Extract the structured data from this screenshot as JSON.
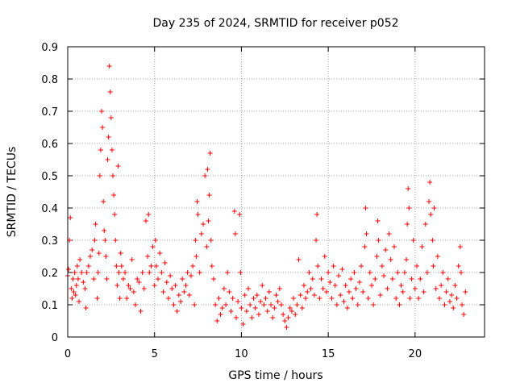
{
  "chart_data": {
    "type": "scatter",
    "title": "Day 235 of 2024, SRMTID for receiver p052",
    "xlabel": "GPS time / hours",
    "ylabel": "SRMTID / TECUs",
    "xlim": [
      0,
      24
    ],
    "ylim": [
      0,
      0.9
    ],
    "xticks": [
      0,
      5,
      10,
      15,
      20
    ],
    "xtick_labels": [
      "0",
      "5",
      "10",
      "15",
      "20"
    ],
    "yticks": [
      0,
      0.1,
      0.2,
      0.3,
      0.4,
      0.5,
      0.6,
      0.7,
      0.8,
      0.9
    ],
    "ytick_labels": [
      "0",
      "0.1",
      "0.2",
      "0.3",
      "0.4",
      "0.5",
      "0.6",
      "0.7",
      "0.8",
      "0.9"
    ],
    "grid": true,
    "marker": "+",
    "color": "#ff0000",
    "series": [
      {
        "name": "SRMTID",
        "points": [
          [
            0.0,
            0.19
          ],
          [
            0.05,
            0.21
          ],
          [
            0.1,
            0.3
          ],
          [
            0.15,
            0.37
          ],
          [
            0.2,
            0.15
          ],
          [
            0.25,
            0.12
          ],
          [
            0.3,
            0.18
          ],
          [
            0.35,
            0.14
          ],
          [
            0.4,
            0.2
          ],
          [
            0.45,
            0.13
          ],
          [
            0.5,
            0.16
          ],
          [
            0.55,
            0.22
          ],
          [
            0.6,
            0.18
          ],
          [
            0.65,
            0.11
          ],
          [
            0.7,
            0.24
          ],
          [
            0.8,
            0.2
          ],
          [
            0.9,
            0.17
          ],
          [
            1.0,
            0.15
          ],
          [
            1.05,
            0.09
          ],
          [
            1.1,
            0.2
          ],
          [
            1.2,
            0.22
          ],
          [
            1.3,
            0.25
          ],
          [
            1.4,
            0.27
          ],
          [
            1.5,
            0.18
          ],
          [
            1.55,
            0.3
          ],
          [
            1.6,
            0.35
          ],
          [
            1.7,
            0.12
          ],
          [
            1.75,
            0.2
          ],
          [
            1.8,
            0.26
          ],
          [
            1.85,
            0.5
          ],
          [
            1.9,
            0.58
          ],
          [
            1.95,
            0.7
          ],
          [
            2.0,
            0.65
          ],
          [
            2.05,
            0.42
          ],
          [
            2.1,
            0.33
          ],
          [
            2.15,
            0.3
          ],
          [
            2.2,
            0.25
          ],
          [
            2.25,
            0.18
          ],
          [
            2.3,
            0.55
          ],
          [
            2.35,
            0.62
          ],
          [
            2.4,
            0.84
          ],
          [
            2.45,
            0.76
          ],
          [
            2.5,
            0.68
          ],
          [
            2.55,
            0.58
          ],
          [
            2.6,
            0.5
          ],
          [
            2.65,
            0.44
          ],
          [
            2.7,
            0.38
          ],
          [
            2.75,
            0.3
          ],
          [
            2.8,
            0.22
          ],
          [
            2.85,
            0.16
          ],
          [
            2.9,
            0.53
          ],
          [
            2.95,
            0.2
          ],
          [
            3.0,
            0.12
          ],
          [
            3.05,
            0.26
          ],
          [
            3.1,
            0.22
          ],
          [
            3.2,
            0.18
          ],
          [
            3.3,
            0.2
          ],
          [
            3.4,
            0.12
          ],
          [
            3.5,
            0.16
          ],
          [
            3.6,
            0.15
          ],
          [
            3.7,
            0.24
          ],
          [
            3.8,
            0.14
          ],
          [
            3.9,
            0.1
          ],
          [
            4.0,
            0.18
          ],
          [
            4.1,
            0.17
          ],
          [
            4.2,
            0.08
          ],
          [
            4.3,
            0.2
          ],
          [
            4.4,
            0.15
          ],
          [
            4.5,
            0.36
          ],
          [
            4.6,
            0.25
          ],
          [
            4.65,
            0.38
          ],
          [
            4.7,
            0.2
          ],
          [
            4.8,
            0.22
          ],
          [
            4.9,
            0.28
          ],
          [
            5.0,
            0.16
          ],
          [
            5.05,
            0.3
          ],
          [
            5.1,
            0.22
          ],
          [
            5.2,
            0.18
          ],
          [
            5.3,
            0.26
          ],
          [
            5.4,
            0.2
          ],
          [
            5.5,
            0.14
          ],
          [
            5.6,
            0.23
          ],
          [
            5.7,
            0.17
          ],
          [
            5.8,
            0.12
          ],
          [
            5.9,
            0.19
          ],
          [
            6.0,
            0.15
          ],
          [
            6.1,
            0.1
          ],
          [
            6.2,
            0.16
          ],
          [
            6.3,
            0.08
          ],
          [
            6.4,
            0.13
          ],
          [
            6.5,
            0.11
          ],
          [
            6.6,
            0.18
          ],
          [
            6.7,
            0.14
          ],
          [
            6.8,
            0.16
          ],
          [
            6.9,
            0.2
          ],
          [
            7.0,
            0.13
          ],
          [
            7.1,
            0.19
          ],
          [
            7.2,
            0.22
          ],
          [
            7.3,
            0.1
          ],
          [
            7.35,
            0.3
          ],
          [
            7.4,
            0.25
          ],
          [
            7.45,
            0.42
          ],
          [
            7.5,
            0.38
          ],
          [
            7.6,
            0.2
          ],
          [
            7.7,
            0.32
          ],
          [
            7.8,
            0.35
          ],
          [
            7.9,
            0.5
          ],
          [
            8.0,
            0.28
          ],
          [
            8.05,
            0.52
          ],
          [
            8.1,
            0.36
          ],
          [
            8.15,
            0.44
          ],
          [
            8.2,
            0.57
          ],
          [
            8.25,
            0.3
          ],
          [
            8.3,
            0.22
          ],
          [
            8.4,
            0.18
          ],
          [
            8.5,
            0.1
          ],
          [
            8.6,
            0.05
          ],
          [
            8.7,
            0.12
          ],
          [
            8.8,
            0.07
          ],
          [
            8.9,
            0.09
          ],
          [
            9.0,
            0.15
          ],
          [
            9.1,
            0.1
          ],
          [
            9.2,
            0.2
          ],
          [
            9.3,
            0.14
          ],
          [
            9.4,
            0.08
          ],
          [
            9.5,
            0.12
          ],
          [
            9.6,
            0.39
          ],
          [
            9.65,
            0.32
          ],
          [
            9.7,
            0.06
          ],
          [
            9.8,
            0.11
          ],
          [
            9.9,
            0.38
          ],
          [
            9.95,
            0.2
          ],
          [
            10.0,
            0.09
          ],
          [
            10.1,
            0.04
          ],
          [
            10.2,
            0.13
          ],
          [
            10.3,
            0.08
          ],
          [
            10.4,
            0.15
          ],
          [
            10.5,
            0.1
          ],
          [
            10.6,
            0.06
          ],
          [
            10.7,
            0.12
          ],
          [
            10.8,
            0.09
          ],
          [
            10.9,
            0.13
          ],
          [
            11.0,
            0.07
          ],
          [
            11.1,
            0.11
          ],
          [
            11.2,
            0.16
          ],
          [
            11.3,
            0.1
          ],
          [
            11.4,
            0.12
          ],
          [
            11.5,
            0.08
          ],
          [
            11.6,
            0.14
          ],
          [
            11.7,
            0.1
          ],
          [
            11.8,
            0.06
          ],
          [
            11.9,
            0.09
          ],
          [
            12.0,
            0.13
          ],
          [
            12.1,
            0.11
          ],
          [
            12.2,
            0.15
          ],
          [
            12.3,
            0.1
          ],
          [
            12.4,
            0.07
          ],
          [
            12.5,
            0.05
          ],
          [
            12.6,
            0.03
          ],
          [
            12.7,
            0.06
          ],
          [
            12.8,
            0.09
          ],
          [
            12.9,
            0.08
          ],
          [
            13.0,
            0.12
          ],
          [
            13.1,
            0.07
          ],
          [
            13.2,
            0.1
          ],
          [
            13.3,
            0.24
          ],
          [
            13.4,
            0.13
          ],
          [
            13.5,
            0.09
          ],
          [
            13.6,
            0.16
          ],
          [
            13.7,
            0.12
          ],
          [
            13.8,
            0.14
          ],
          [
            13.9,
            0.2
          ],
          [
            14.0,
            0.15
          ],
          [
            14.1,
            0.18
          ],
          [
            14.2,
            0.13
          ],
          [
            14.3,
            0.3
          ],
          [
            14.35,
            0.38
          ],
          [
            14.4,
            0.22
          ],
          [
            14.5,
            0.12
          ],
          [
            14.6,
            0.18
          ],
          [
            14.7,
            0.15
          ],
          [
            14.8,
            0.25
          ],
          [
            14.9,
            0.14
          ],
          [
            15.0,
            0.2
          ],
          [
            15.1,
            0.17
          ],
          [
            15.2,
            0.12
          ],
          [
            15.3,
            0.22
          ],
          [
            15.4,
            0.16
          ],
          [
            15.5,
            0.1
          ],
          [
            15.6,
            0.19
          ],
          [
            15.7,
            0.13
          ],
          [
            15.8,
            0.21
          ],
          [
            15.9,
            0.11
          ],
          [
            16.0,
            0.16
          ],
          [
            16.1,
            0.09
          ],
          [
            16.2,
            0.14
          ],
          [
            16.3,
            0.18
          ],
          [
            16.4,
            0.12
          ],
          [
            16.5,
            0.2
          ],
          [
            16.6,
            0.15
          ],
          [
            16.7,
            0.1
          ],
          [
            16.8,
            0.17
          ],
          [
            16.9,
            0.22
          ],
          [
            17.0,
            0.14
          ],
          [
            17.1,
            0.28
          ],
          [
            17.15,
            0.4
          ],
          [
            17.2,
            0.32
          ],
          [
            17.3,
            0.12
          ],
          [
            17.4,
            0.2
          ],
          [
            17.5,
            0.16
          ],
          [
            17.6,
            0.1
          ],
          [
            17.7,
            0.18
          ],
          [
            17.8,
            0.25
          ],
          [
            17.85,
            0.36
          ],
          [
            17.9,
            0.3
          ],
          [
            18.0,
            0.13
          ],
          [
            18.1,
            0.22
          ],
          [
            18.2,
            0.19
          ],
          [
            18.3,
            0.27
          ],
          [
            18.4,
            0.15
          ],
          [
            18.5,
            0.32
          ],
          [
            18.6,
            0.24
          ],
          [
            18.7,
            0.18
          ],
          [
            18.8,
            0.28
          ],
          [
            18.9,
            0.12
          ],
          [
            19.0,
            0.2
          ],
          [
            19.1,
            0.1
          ],
          [
            19.2,
            0.16
          ],
          [
            19.3,
            0.14
          ],
          [
            19.4,
            0.2
          ],
          [
            19.5,
            0.24
          ],
          [
            19.55,
            0.35
          ],
          [
            19.6,
            0.46
          ],
          [
            19.65,
            0.4
          ],
          [
            19.7,
            0.12
          ],
          [
            19.8,
            0.18
          ],
          [
            19.9,
            0.3
          ],
          [
            20.0,
            0.15
          ],
          [
            20.1,
            0.22
          ],
          [
            20.2,
            0.12
          ],
          [
            20.3,
            0.18
          ],
          [
            20.4,
            0.28
          ],
          [
            20.5,
            0.14
          ],
          [
            20.6,
            0.35
          ],
          [
            20.7,
            0.2
          ],
          [
            20.8,
            0.42
          ],
          [
            20.85,
            0.48
          ],
          [
            20.9,
            0.38
          ],
          [
            21.0,
            0.3
          ],
          [
            21.05,
            0.22
          ],
          [
            21.1,
            0.4
          ],
          [
            21.2,
            0.15
          ],
          [
            21.3,
            0.25
          ],
          [
            21.4,
            0.12
          ],
          [
            21.5,
            0.16
          ],
          [
            21.6,
            0.2
          ],
          [
            21.7,
            0.1
          ],
          [
            21.8,
            0.14
          ],
          [
            21.9,
            0.18
          ],
          [
            22.0,
            0.11
          ],
          [
            22.1,
            0.13
          ],
          [
            22.2,
            0.09
          ],
          [
            22.3,
            0.16
          ],
          [
            22.4,
            0.12
          ],
          [
            22.5,
            0.22
          ],
          [
            22.6,
            0.28
          ],
          [
            22.65,
            0.2
          ],
          [
            22.7,
            0.1
          ],
          [
            22.8,
            0.07
          ],
          [
            22.9,
            0.14
          ]
        ]
      }
    ]
  }
}
